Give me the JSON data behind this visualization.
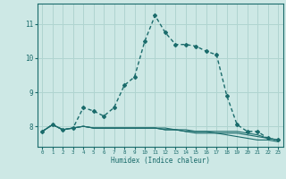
{
  "xlabel": "Humidex (Indice chaleur)",
  "ylabel": "",
  "background_color": "#cde8e5",
  "grid_color": "#b0d4d0",
  "line_color": "#1a6b6b",
  "x_values": [
    0,
    1,
    2,
    3,
    4,
    5,
    6,
    7,
    8,
    9,
    10,
    11,
    12,
    13,
    14,
    15,
    16,
    17,
    18,
    19,
    20,
    21,
    22,
    23
  ],
  "series": [
    [
      7.85,
      8.05,
      7.9,
      7.95,
      8.55,
      8.45,
      8.3,
      8.55,
      9.2,
      9.45,
      10.5,
      11.25,
      10.75,
      10.4,
      10.4,
      10.35,
      10.2,
      10.1,
      8.9,
      8.05,
      7.85,
      7.85,
      7.65,
      7.6
    ],
    [
      7.85,
      8.05,
      7.9,
      7.95,
      8.0,
      7.95,
      7.95,
      7.95,
      7.95,
      7.95,
      7.95,
      7.95,
      7.95,
      7.9,
      7.9,
      7.85,
      7.85,
      7.85,
      7.85,
      7.85,
      7.8,
      7.75,
      7.65,
      7.6
    ],
    [
      7.85,
      8.05,
      7.9,
      7.95,
      8.0,
      7.95,
      7.95,
      7.95,
      7.95,
      7.95,
      7.95,
      7.95,
      7.9,
      7.9,
      7.85,
      7.85,
      7.85,
      7.8,
      7.8,
      7.8,
      7.75,
      7.7,
      7.65,
      7.6
    ],
    [
      7.85,
      8.05,
      7.9,
      7.95,
      8.0,
      7.95,
      7.95,
      7.95,
      7.95,
      7.95,
      7.95,
      7.95,
      7.9,
      7.9,
      7.85,
      7.8,
      7.8,
      7.8,
      7.75,
      7.7,
      7.65,
      7.6,
      7.6,
      7.55
    ]
  ],
  "yticks": [
    8,
    9,
    10,
    11
  ],
  "ylim": [
    7.4,
    11.6
  ],
  "xlim": [
    -0.5,
    23.5
  ]
}
